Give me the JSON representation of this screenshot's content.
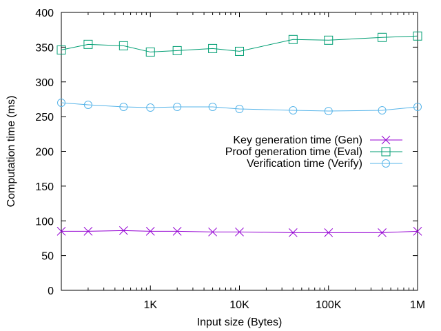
{
  "chart_data": {
    "type": "line",
    "title": "",
    "xlabel": "Input size (Bytes)",
    "ylabel": "Computation time (ms)",
    "x_scale": "log",
    "xlim": [
      100,
      1000000
    ],
    "ylim": [
      0,
      400
    ],
    "x_ticks": [
      {
        "value": 1000,
        "label": "1K"
      },
      {
        "value": 10000,
        "label": "10K"
      },
      {
        "value": 100000,
        "label": "100K"
      },
      {
        "value": 1000000,
        "label": "1M"
      }
    ],
    "y_ticks": [
      {
        "value": 0,
        "label": "0"
      },
      {
        "value": 50,
        "label": "50"
      },
      {
        "value": 100,
        "label": "100"
      },
      {
        "value": 150,
        "label": "150"
      },
      {
        "value": 200,
        "label": "200"
      },
      {
        "value": 250,
        "label": "250"
      },
      {
        "value": 300,
        "label": "300"
      },
      {
        "value": 350,
        "label": "350"
      },
      {
        "value": 400,
        "label": "400"
      }
    ],
    "grid": false,
    "legend_position": "right",
    "x": [
      100,
      200,
      500,
      1000,
      2000,
      5000,
      10000,
      40000,
      100000,
      400000,
      1000000
    ],
    "series": [
      {
        "name": "Key generation time (Gen)",
        "marker": "cross",
        "color": "#9400d3",
        "values": [
          85,
          85,
          86,
          85,
          85,
          84,
          84,
          83,
          83,
          83,
          85
        ]
      },
      {
        "name": "Proof generation time (Eval)",
        "marker": "square",
        "color": "#009e73",
        "values": [
          346,
          354,
          352,
          343,
          345,
          348,
          344,
          361,
          360,
          364,
          366
        ]
      },
      {
        "name": "Verification time (Verify)",
        "marker": "circle",
        "color": "#56b4e9",
        "values": [
          270,
          267,
          264,
          263,
          264,
          264,
          261,
          259,
          258,
          259,
          264
        ]
      }
    ]
  }
}
